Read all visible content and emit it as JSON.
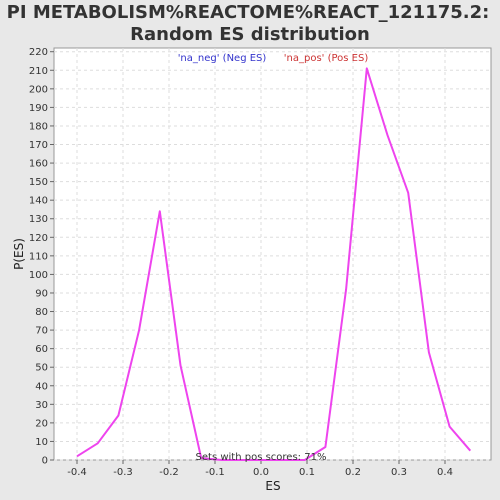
{
  "chart_data": {
    "type": "line",
    "title": "PI METABOLISM%REACTOME%REACT_121175.2:",
    "subtitle": "Random ES distribution",
    "xlabel": "ES",
    "ylabel": "P(ES)",
    "xlim": [
      -0.45,
      0.5
    ],
    "ylim": [
      0,
      222
    ],
    "x_ticks": [
      -0.4,
      -0.3,
      -0.2,
      -0.1,
      0.0,
      0.1,
      0.2,
      0.3,
      0.4
    ],
    "x_tick_labels": [
      "-0.4",
      "-0.3",
      "-0.2",
      "-0.1",
      "0.0",
      "0.1",
      "0.2",
      "0.3",
      "0.4"
    ],
    "y_ticks": [
      0,
      10,
      20,
      30,
      40,
      50,
      60,
      70,
      80,
      90,
      100,
      110,
      120,
      130,
      140,
      150,
      160,
      170,
      180,
      190,
      200,
      210,
      220
    ],
    "y_tick_labels": [
      "0",
      "10",
      "20",
      "30",
      "40",
      "50",
      "60",
      "70",
      "80",
      "90",
      "100",
      "110",
      "120",
      "130",
      "140",
      "150",
      "160",
      "170",
      "180",
      "190",
      "200",
      "210",
      "220"
    ],
    "grid": true,
    "legend_position": "top",
    "legend": [
      {
        "label": "'na_neg' (Neg ES)",
        "color": "#3333cc"
      },
      {
        "label": "'na_pos' (Pos ES)",
        "color": "#cc3333"
      }
    ],
    "series": [
      {
        "color": "#ee44ee",
        "x": [
          -0.4,
          -0.355,
          -0.31,
          -0.265,
          -0.22,
          -0.175,
          -0.13,
          -0.085,
          -0.04,
          0.005,
          0.05,
          0.095,
          0.14,
          0.185,
          0.23,
          0.275,
          0.32,
          0.365,
          0.41,
          0.455
        ],
        "y": [
          2,
          9,
          24,
          70,
          134,
          51,
          1,
          0,
          0,
          0,
          0,
          0,
          7,
          92,
          211,
          175,
          144,
          58,
          18,
          5
        ]
      }
    ],
    "annotations": [
      {
        "text": "Sets with pos scores: 71%"
      }
    ]
  }
}
